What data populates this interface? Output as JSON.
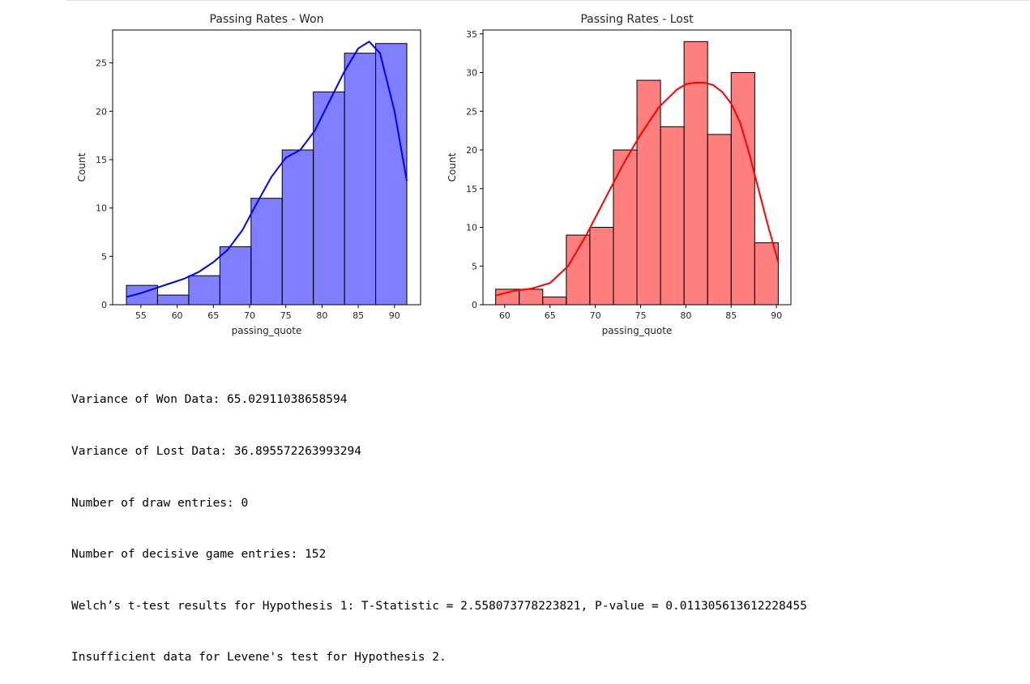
{
  "chart_data": [
    {
      "type": "bar",
      "subtype": "histogram-with-kde",
      "title": "Passing Rates - Won",
      "xlabel": "passing_quote",
      "ylabel": "Count",
      "color": "#0000ff",
      "bin_edges": [
        53.0,
        57.3,
        61.6,
        65.9,
        70.2,
        74.5,
        78.8,
        83.1,
        87.4,
        91.7
      ],
      "values": [
        2,
        1,
        3,
        6,
        11,
        16,
        22,
        26,
        27
      ],
      "kde": {
        "x": [
          53.0,
          55,
          57,
          59,
          61,
          63,
          65,
          67,
          69,
          71,
          73,
          75,
          77,
          79,
          81,
          83,
          85,
          86.5,
          88,
          90,
          91.7
        ],
        "y": [
          0.8,
          1.2,
          1.7,
          2.2,
          2.7,
          3.4,
          4.4,
          5.7,
          7.7,
          10.5,
          13.2,
          15.2,
          16.0,
          18.0,
          21.0,
          24.0,
          26.5,
          27.2,
          26.0,
          20.0,
          12.8
        ]
      },
      "xticks": [
        55,
        60,
        65,
        70,
        75,
        80,
        85,
        90
      ],
      "yticks": [
        0,
        5,
        10,
        15,
        20,
        25
      ],
      "xlim": [
        51.1,
        93.6
      ],
      "ylim": [
        0,
        28.4
      ],
      "grid": false
    },
    {
      "type": "bar",
      "subtype": "histogram-with-kde",
      "title": "Passing Rates - Lost",
      "xlabel": "passing_quote",
      "ylabel": "Count",
      "color": "#ff0000",
      "bin_edges": [
        59.0,
        61.6,
        64.2,
        66.8,
        69.4,
        72.0,
        74.6,
        77.2,
        79.8,
        82.4,
        85.0,
        87.6,
        90.2
      ],
      "values": [
        2,
        2,
        1,
        9,
        10,
        20,
        29,
        23,
        34,
        22,
        30,
        8
      ],
      "kde": {
        "x": [
          59.0,
          61,
          63,
          65,
          67,
          69,
          71,
          73,
          75,
          77,
          79,
          80,
          81,
          82,
          83,
          84,
          85,
          86,
          87,
          88,
          89,
          90.2
        ],
        "y": [
          1.2,
          1.8,
          2.1,
          2.8,
          5.0,
          9.0,
          13.5,
          18.0,
          22.0,
          25.5,
          27.8,
          28.5,
          28.7,
          28.7,
          28.4,
          27.5,
          26.0,
          23.5,
          19.5,
          15.0,
          10.5,
          5.5
        ]
      },
      "xticks": [
        60,
        65,
        70,
        75,
        80,
        85,
        90
      ],
      "yticks": [
        0,
        5,
        10,
        15,
        20,
        25,
        30,
        35
      ],
      "xlim": [
        57.6,
        91.6
      ],
      "ylim": [
        0,
        35.5
      ],
      "grid": false
    }
  ],
  "output": {
    "lines": [
      "Variance of Won Data: 65.02911038658594",
      "Variance of Lost Data: 36.895572263993294",
      "Number of draw entries: 0",
      "Number of decisive game entries: 152",
      "Welch’s t-test results for Hypothesis 1: T-Statistic = 2.558073778223821, P-value = 0.011305613612228455",
      "Insufficient data for Levene's test for Hypothesis 2."
    ]
  }
}
